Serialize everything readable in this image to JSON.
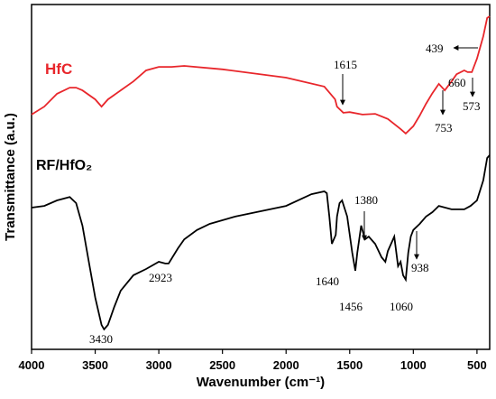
{
  "chart_data": {
    "type": "line",
    "xlabel": "Wavenumber (cm⁻¹)",
    "ylabel": "Transmittance (a.u.)",
    "xlim": [
      4000,
      400
    ],
    "ylim": [
      0,
      100
    ],
    "xticks": [
      4000,
      3500,
      3000,
      2500,
      2000,
      1500,
      1000,
      500
    ],
    "series": [
      {
        "name": "HfC",
        "color": "#e8262b",
        "x": [
          4000,
          3900,
          3800,
          3700,
          3650,
          3600,
          3500,
          3450,
          3400,
          3300,
          3200,
          3100,
          3000,
          2900,
          2800,
          2500,
          2000,
          1700,
          1615,
          1600,
          1550,
          1500,
          1400,
          1300,
          1200,
          1100,
          1060,
          1000,
          950,
          900,
          850,
          800,
          753,
          700,
          660,
          600,
          573,
          540,
          500,
          450,
          420,
          400
        ],
        "values": [
          68.1,
          70.4,
          74.1,
          75.9,
          75.9,
          75.1,
          72.5,
          70.4,
          72.5,
          75.1,
          77.7,
          80.9,
          81.9,
          81.9,
          82.2,
          81.2,
          78.8,
          76.2,
          72.5,
          70.4,
          68.6,
          68.8,
          68.1,
          68.3,
          66.8,
          63.9,
          62.6,
          64.7,
          67.8,
          71.2,
          74.3,
          77.0,
          75.1,
          77.7,
          79.8,
          80.9,
          80.4,
          80.4,
          84.3,
          90.8,
          96.1,
          96.6
        ]
      },
      {
        "name": "RF/HfO₂",
        "color": "#000000",
        "x": [
          4000,
          3900,
          3800,
          3700,
          3650,
          3600,
          3550,
          3500,
          3450,
          3430,
          3400,
          3350,
          3300,
          3200,
          3100,
          3000,
          2950,
          2923,
          2850,
          2800,
          2700,
          2600,
          2400,
          2000,
          1800,
          1700,
          1680,
          1660,
          1640,
          1610,
          1600,
          1580,
          1560,
          1520,
          1480,
          1456,
          1440,
          1410,
          1380,
          1350,
          1300,
          1250,
          1220,
          1200,
          1150,
          1120,
          1100,
          1080,
          1060,
          1040,
          1020,
          1000,
          950,
          900,
          850,
          800,
          700,
          600,
          550,
          500,
          450,
          420,
          400
        ],
        "values": [
          41.1,
          41.6,
          43.2,
          44.2,
          42.4,
          35.9,
          25.4,
          15.0,
          7.1,
          5.8,
          7.1,
          12.3,
          17.0,
          21.5,
          23.3,
          25.4,
          24.9,
          24.9,
          29.3,
          31.9,
          34.6,
          36.4,
          38.5,
          41.6,
          45.0,
          45.8,
          45.3,
          38.5,
          30.6,
          33.2,
          38.5,
          42.4,
          43.2,
          38.5,
          28.0,
          22.8,
          28.0,
          35.9,
          31.9,
          32.7,
          30.6,
          26.7,
          25.4,
          28.5,
          32.7,
          24.1,
          25.4,
          21.5,
          20.2,
          28.0,
          32.7,
          34.6,
          36.4,
          38.5,
          39.8,
          41.6,
          40.6,
          40.6,
          41.6,
          43.2,
          49.0,
          55.5,
          56.3
        ]
      }
    ],
    "annotations": [
      "1615",
      "439",
      "660",
      "753",
      "573",
      "3430",
      "2923",
      "1640",
      "1456",
      "1380",
      "1060",
      "938"
    ]
  }
}
